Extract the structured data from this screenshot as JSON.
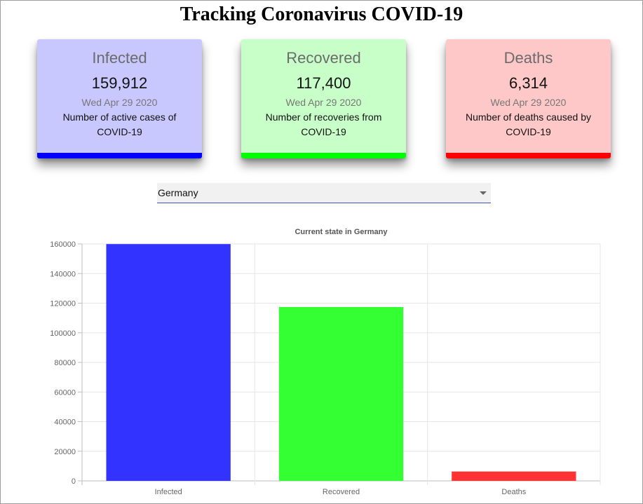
{
  "header": {
    "title": "Tracking Coronavirus COVID-19"
  },
  "cards": [
    {
      "title": "Infected",
      "value": "159,912",
      "date": "Wed Apr 29 2020",
      "description": "Number of active cases of COVID-19",
      "color": "#0000ff",
      "bg": "#c8c8ff"
    },
    {
      "title": "Recovered",
      "value": "117,400",
      "date": "Wed Apr 29 2020",
      "description": "Number of recoveries from COVID-19",
      "color": "#00ff00",
      "bg": "#c8ffc8"
    },
    {
      "title": "Deaths",
      "value": "6,314",
      "date": "Wed Apr 29 2020",
      "description": "Number of deaths caused by COVID-19",
      "color": "#ff0000",
      "bg": "#ffc8c8"
    }
  ],
  "country_select": {
    "value": "Germany"
  },
  "chart_data": {
    "type": "bar",
    "title": "Current state in Germany",
    "categories": [
      "Infected",
      "Recovered",
      "Deaths"
    ],
    "values": [
      159912,
      117400,
      6314
    ],
    "colors": [
      "#3333ff",
      "#33ff33",
      "#ff3333"
    ],
    "ylim": [
      0,
      160000
    ],
    "yticks": [
      "0",
      "20000",
      "40000",
      "60000",
      "80000",
      "100000",
      "120000",
      "140000",
      "160000"
    ],
    "grid": true,
    "legend": "none"
  }
}
